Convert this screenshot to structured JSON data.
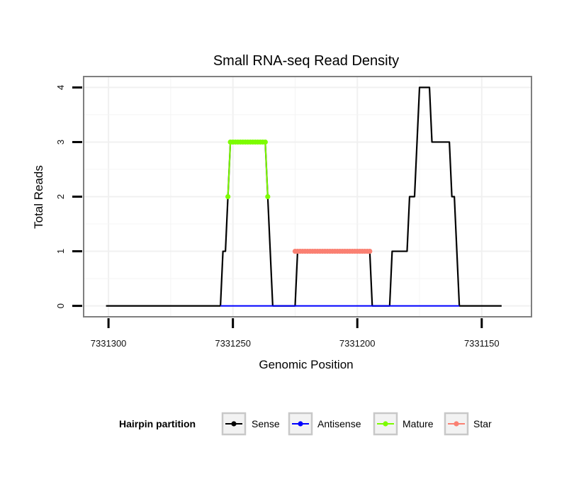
{
  "chart_data": {
    "type": "line",
    "title": "Small RNA-seq Read Density",
    "xlabel": "Genomic Position",
    "ylabel": "Total Reads",
    "x_reversed": true,
    "xlim": [
      7331310,
      7331130
    ],
    "ylim": [
      -0.2,
      4.2
    ],
    "x_ticks": [
      7331300,
      7331250,
      7331200,
      7331150
    ],
    "x_tick_labels": [
      "7331300",
      "7331250",
      "7331200",
      "7331150"
    ],
    "y_ticks": [
      0,
      1,
      2,
      3,
      4
    ],
    "y_tick_labels": [
      "0",
      "1",
      "2",
      "3",
      "4"
    ],
    "grid": true,
    "legend": {
      "title": "Hairpin partition",
      "position": "bottom",
      "entries": [
        "Sense",
        "Antisense",
        "Mature",
        "Star"
      ]
    },
    "series": [
      {
        "name": "Sense",
        "color": "#000000",
        "points": [
          [
            7331301,
            0
          ],
          [
            7331236,
            0
          ],
          [
            7331255,
            0
          ],
          [
            7331254,
            1
          ],
          [
            7331253,
            1
          ],
          [
            7331252,
            2
          ],
          [
            7331251,
            3
          ],
          [
            7331237,
            3
          ],
          [
            7331236,
            2
          ],
          [
            7331235,
            1
          ],
          [
            7331234,
            0
          ],
          [
            7331225,
            0
          ],
          [
            7331224,
            1
          ],
          [
            7331195,
            1
          ],
          [
            7331194,
            0
          ],
          [
            7331187,
            0
          ],
          [
            7331186,
            1
          ],
          [
            7331180,
            1
          ],
          [
            7331179,
            2
          ],
          [
            7331177,
            2
          ],
          [
            7331176,
            3
          ],
          [
            7331175,
            4
          ],
          [
            7331171,
            4
          ],
          [
            7331170,
            3
          ],
          [
            7331163,
            3
          ],
          [
            7331162,
            2
          ],
          [
            7331161,
            2
          ],
          [
            7331159,
            0
          ],
          [
            7331148,
            0
          ],
          [
            7331142,
            0
          ]
        ]
      },
      {
        "name": "Antisense",
        "color": "#0000ff",
        "points": [
          [
            7331255,
            0
          ],
          [
            7331159,
            0
          ]
        ]
      },
      {
        "name": "Mature",
        "color": "#7cfc00",
        "points": [
          [
            7331252,
            2
          ],
          [
            7331251,
            3
          ],
          [
            7331250,
            3
          ],
          [
            7331249,
            3
          ],
          [
            7331248,
            3
          ],
          [
            7331247,
            3
          ],
          [
            7331246,
            3
          ],
          [
            7331245,
            3
          ],
          [
            7331244,
            3
          ],
          [
            7331243,
            3
          ],
          [
            7331242,
            3
          ],
          [
            7331241,
            3
          ],
          [
            7331240,
            3
          ],
          [
            7331239,
            3
          ],
          [
            7331238,
            3
          ],
          [
            7331237,
            3
          ],
          [
            7331236,
            2
          ]
        ]
      },
      {
        "name": "Star",
        "color": "#fa8072",
        "points": [
          [
            7331225,
            1
          ],
          [
            7331224,
            1
          ],
          [
            7331223,
            1
          ],
          [
            7331222,
            1
          ],
          [
            7331221,
            1
          ],
          [
            7331220,
            1
          ],
          [
            7331219,
            1
          ],
          [
            7331218,
            1
          ],
          [
            7331217,
            1
          ],
          [
            7331216,
            1
          ],
          [
            7331215,
            1
          ],
          [
            7331214,
            1
          ],
          [
            7331213,
            1
          ],
          [
            7331212,
            1
          ],
          [
            7331211,
            1
          ],
          [
            7331210,
            1
          ],
          [
            7331209,
            1
          ],
          [
            7331208,
            1
          ],
          [
            7331207,
            1
          ],
          [
            7331206,
            1
          ],
          [
            7331205,
            1
          ],
          [
            7331204,
            1
          ],
          [
            7331203,
            1
          ],
          [
            7331202,
            1
          ],
          [
            7331201,
            1
          ],
          [
            7331200,
            1
          ],
          [
            7331199,
            1
          ],
          [
            7331198,
            1
          ],
          [
            7331197,
            1
          ],
          [
            7331196,
            1
          ],
          [
            7331195,
            1
          ]
        ]
      }
    ]
  }
}
